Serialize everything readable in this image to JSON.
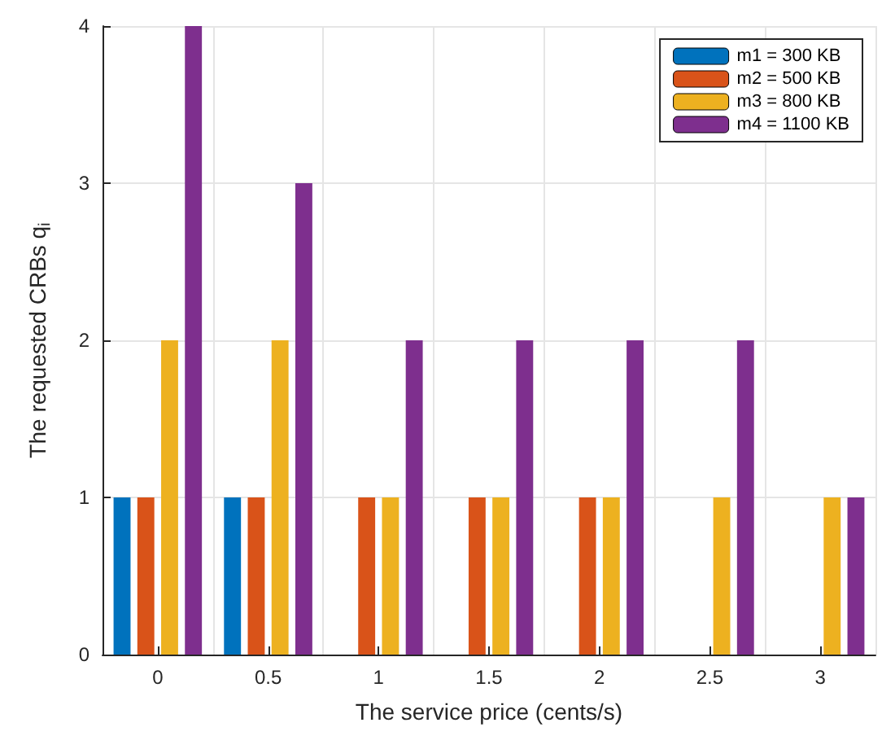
{
  "chart_data": {
    "type": "bar",
    "xlabel": "The service price (cents/s)",
    "ylabel": "The requested CRBs q$_{i}$",
    "categories": [
      "0",
      "0.5",
      "1",
      "1.5",
      "2",
      "2.5",
      "3"
    ],
    "series": [
      {
        "name": "m1 = 300 KB",
        "color": "#0072bd",
        "values": [
          1,
          1,
          0,
          0,
          0,
          0,
          0
        ]
      },
      {
        "name": "m2 = 500 KB",
        "color": "#d95319",
        "values": [
          1,
          1,
          1,
          1,
          1,
          0,
          0
        ]
      },
      {
        "name": "m3 = 800 KB",
        "color": "#edb120",
        "values": [
          2,
          2,
          1,
          1,
          1,
          1,
          1
        ]
      },
      {
        "name": "m4 = 1100 KB",
        "color": "#7e2f8e",
        "values": [
          4,
          3,
          2,
          2,
          2,
          2,
          1
        ]
      }
    ],
    "ylim": [
      0,
      4
    ],
    "yticks": [
      0,
      1,
      2,
      3,
      4
    ],
    "grid": true,
    "legend": "top right"
  }
}
